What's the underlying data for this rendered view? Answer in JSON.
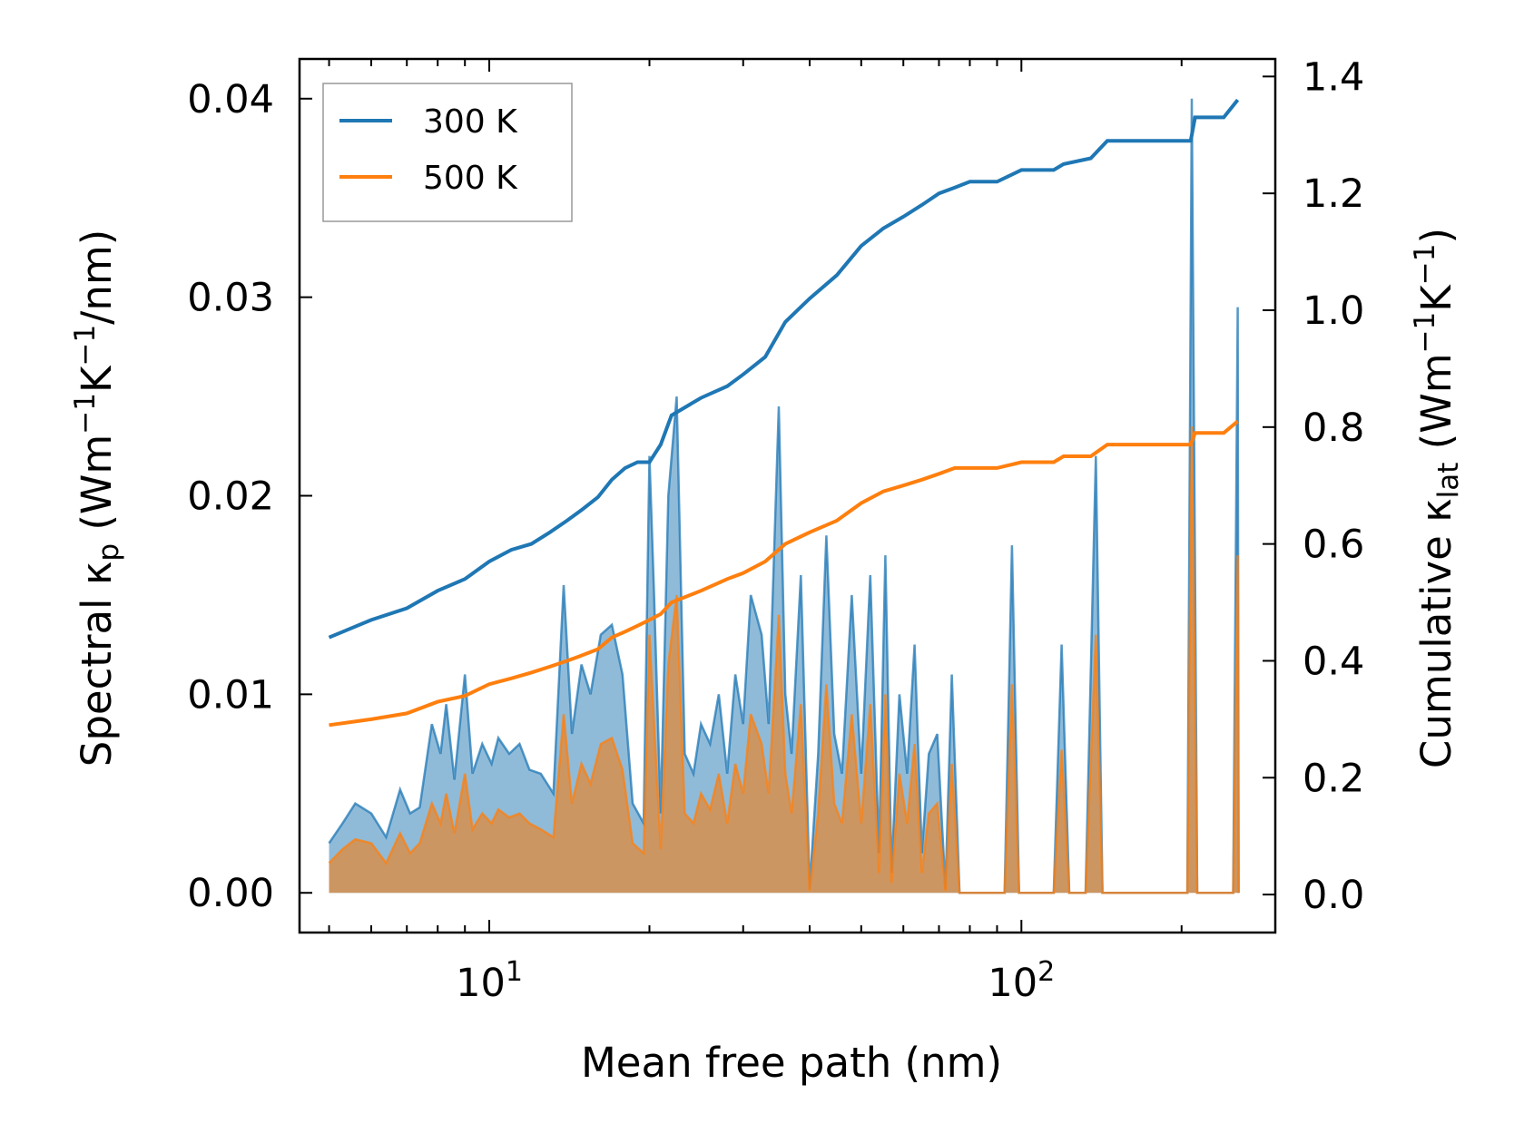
{
  "chart_data": {
    "type": "line",
    "xscale": "log",
    "xlabel": "Mean free path (nm)",
    "ylabel_left": {
      "main": "Spectral κ",
      "sub": "p",
      "unit_open": " (Wm",
      "exp1": "−1",
      "mid": "K",
      "exp2": "−1",
      "unit_close": "/nm)"
    },
    "ylabel_right": {
      "main": "Cumulative κ",
      "sub": "lat",
      "unit_open": " (Wm",
      "exp1": "−1",
      "mid": "K",
      "exp2": "−1",
      "unit_close": ")"
    },
    "xlim": [
      4.4,
      300
    ],
    "ylim_left": [
      -0.002,
      0.042
    ],
    "ylim_right": [
      -0.065,
      1.43
    ],
    "x_ticks": [
      {
        "value": 10,
        "base": "10",
        "exp": "1"
      },
      {
        "value": 100,
        "base": "10",
        "exp": "2"
      }
    ],
    "y_ticks_left": [
      {
        "value": 0.0,
        "label": "0.00"
      },
      {
        "value": 0.01,
        "label": "0.01"
      },
      {
        "value": 0.02,
        "label": "0.02"
      },
      {
        "value": 0.03,
        "label": "0.03"
      },
      {
        "value": 0.04,
        "label": "0.04"
      }
    ],
    "y_ticks_right": [
      {
        "value": 0.0,
        "label": "0.0"
      },
      {
        "value": 0.2,
        "label": "0.2"
      },
      {
        "value": 0.4,
        "label": "0.4"
      },
      {
        "value": 0.6,
        "label": "0.6"
      },
      {
        "value": 0.8,
        "label": "0.8"
      },
      {
        "value": 1.0,
        "label": "1.0"
      },
      {
        "value": 1.2,
        "label": "1.2"
      },
      {
        "value": 1.4,
        "label": "1.4"
      }
    ],
    "series": [
      {
        "name": "300 K",
        "color": "#1f77b4",
        "fill_color": "#1f77b4",
        "cumulative": [
          [
            5.0,
            0.44
          ],
          [
            6.0,
            0.47
          ],
          [
            7.0,
            0.49
          ],
          [
            8.0,
            0.52
          ],
          [
            9.0,
            0.54
          ],
          [
            10.0,
            0.57
          ],
          [
            11.0,
            0.59
          ],
          [
            12.0,
            0.6
          ],
          [
            13.0,
            0.62
          ],
          [
            14.0,
            0.64
          ],
          [
            15.0,
            0.66
          ],
          [
            16.0,
            0.68
          ],
          [
            17.0,
            0.71
          ],
          [
            18.0,
            0.73
          ],
          [
            19.0,
            0.74
          ],
          [
            20.0,
            0.74
          ],
          [
            21.0,
            0.77
          ],
          [
            22.0,
            0.82
          ],
          [
            25.0,
            0.85
          ],
          [
            28.0,
            0.87
          ],
          [
            30.0,
            0.89
          ],
          [
            33.0,
            0.92
          ],
          [
            36.0,
            0.98
          ],
          [
            40.0,
            1.02
          ],
          [
            45.0,
            1.06
          ],
          [
            50.0,
            1.11
          ],
          [
            55.0,
            1.14
          ],
          [
            60.0,
            1.16
          ],
          [
            65.0,
            1.18
          ],
          [
            70.0,
            1.2
          ],
          [
            75.0,
            1.21
          ],
          [
            80.0,
            1.22
          ],
          [
            90.0,
            1.22
          ],
          [
            100.0,
            1.24
          ],
          [
            115.0,
            1.24
          ],
          [
            120.0,
            1.25
          ],
          [
            135.0,
            1.26
          ],
          [
            145.0,
            1.29
          ],
          [
            200.0,
            1.29
          ],
          [
            208.0,
            1.29
          ],
          [
            212.0,
            1.33
          ],
          [
            240.0,
            1.33
          ],
          [
            255.0,
            1.36
          ]
        ],
        "spectral": [
          [
            5.0,
            0.0025
          ],
          [
            5.3,
            0.0035
          ],
          [
            5.6,
            0.0045
          ],
          [
            6.0,
            0.004
          ],
          [
            6.4,
            0.0028
          ],
          [
            6.8,
            0.0052
          ],
          [
            7.1,
            0.004
          ],
          [
            7.4,
            0.0043
          ],
          [
            7.8,
            0.0085
          ],
          [
            8.1,
            0.007
          ],
          [
            8.3,
            0.0095
          ],
          [
            8.6,
            0.0057
          ],
          [
            9.0,
            0.011
          ],
          [
            9.3,
            0.006
          ],
          [
            9.7,
            0.0075
          ],
          [
            10.1,
            0.0065
          ],
          [
            10.4,
            0.0078
          ],
          [
            10.9,
            0.007
          ],
          [
            11.4,
            0.0075
          ],
          [
            11.9,
            0.0062
          ],
          [
            12.5,
            0.006
          ],
          [
            13.2,
            0.005
          ],
          [
            13.8,
            0.0155
          ],
          [
            14.3,
            0.008
          ],
          [
            14.9,
            0.0115
          ],
          [
            15.5,
            0.01
          ],
          [
            16.2,
            0.013
          ],
          [
            17.0,
            0.0135
          ],
          [
            17.8,
            0.011
          ],
          [
            18.6,
            0.0045
          ],
          [
            19.5,
            0.0035
          ],
          [
            20.0,
            0.022
          ],
          [
            20.4,
            0.015
          ],
          [
            21.0,
            0.004
          ],
          [
            21.7,
            0.02
          ],
          [
            22.5,
            0.025
          ],
          [
            23.3,
            0.007
          ],
          [
            24.2,
            0.006
          ],
          [
            25.0,
            0.0085
          ],
          [
            26.0,
            0.0075
          ],
          [
            27.0,
            0.01
          ],
          [
            28.0,
            0.006
          ],
          [
            29.0,
            0.011
          ],
          [
            30.0,
            0.0085
          ],
          [
            31.0,
            0.015
          ],
          [
            32.5,
            0.013
          ],
          [
            33.5,
            0.0085
          ],
          [
            35.0,
            0.0245
          ],
          [
            36.0,
            0.01
          ],
          [
            37.0,
            0.007
          ],
          [
            38.5,
            0.016
          ],
          [
            40.0,
            0.0002
          ],
          [
            41.5,
            0.007
          ],
          [
            43.0,
            0.018
          ],
          [
            44.5,
            0.008
          ],
          [
            46.0,
            0.006
          ],
          [
            48.0,
            0.015
          ],
          [
            50.0,
            0.006
          ],
          [
            52.0,
            0.016
          ],
          [
            54.0,
            0.002
          ],
          [
            55.5,
            0.017
          ],
          [
            57.0,
            0.001
          ],
          [
            59.0,
            0.01
          ],
          [
            61.0,
            0.006
          ],
          [
            63.0,
            0.0125
          ],
          [
            65.0,
            0.002
          ],
          [
            67.0,
            0.007
          ],
          [
            69.5,
            0.008
          ],
          [
            72.0,
            0.0002
          ],
          [
            74.0,
            0.011
          ],
          [
            76.5,
            0.0
          ],
          [
            93.0,
            0.0
          ],
          [
            96.0,
            0.0175
          ],
          [
            99.0,
            0.0
          ],
          [
            115.0,
            0.0
          ],
          [
            119.0,
            0.0125
          ],
          [
            123.0,
            0.0
          ],
          [
            132.0,
            0.0
          ],
          [
            138.0,
            0.022
          ],
          [
            142.0,
            0.0
          ],
          [
            205.0,
            0.0
          ],
          [
            209.0,
            0.04
          ],
          [
            214.0,
            0.0
          ],
          [
            250.0,
            0.0
          ],
          [
            255.0,
            0.0295
          ],
          [
            256.0,
            0.0
          ]
        ]
      },
      {
        "name": "500 K",
        "color": "#ff7f0e",
        "fill_color": "#e08a3a",
        "cumulative": [
          [
            5.0,
            0.29
          ],
          [
            6.0,
            0.3
          ],
          [
            7.0,
            0.31
          ],
          [
            8.0,
            0.33
          ],
          [
            9.0,
            0.34
          ],
          [
            10.0,
            0.36
          ],
          [
            11.0,
            0.37
          ],
          [
            12.0,
            0.38
          ],
          [
            13.0,
            0.39
          ],
          [
            14.0,
            0.4
          ],
          [
            15.0,
            0.41
          ],
          [
            16.0,
            0.42
          ],
          [
            17.0,
            0.44
          ],
          [
            18.0,
            0.45
          ],
          [
            19.0,
            0.46
          ],
          [
            20.0,
            0.47
          ],
          [
            21.0,
            0.48
          ],
          [
            22.0,
            0.5
          ],
          [
            25.0,
            0.52
          ],
          [
            28.0,
            0.54
          ],
          [
            30.0,
            0.55
          ],
          [
            33.0,
            0.57
          ],
          [
            36.0,
            0.6
          ],
          [
            40.0,
            0.62
          ],
          [
            45.0,
            0.64
          ],
          [
            50.0,
            0.67
          ],
          [
            55.0,
            0.69
          ],
          [
            60.0,
            0.7
          ],
          [
            65.0,
            0.71
          ],
          [
            70.0,
            0.72
          ],
          [
            75.0,
            0.73
          ],
          [
            80.0,
            0.73
          ],
          [
            90.0,
            0.73
          ],
          [
            100.0,
            0.74
          ],
          [
            115.0,
            0.74
          ],
          [
            120.0,
            0.75
          ],
          [
            135.0,
            0.75
          ],
          [
            145.0,
            0.77
          ],
          [
            200.0,
            0.77
          ],
          [
            208.0,
            0.77
          ],
          [
            212.0,
            0.79
          ],
          [
            240.0,
            0.79
          ],
          [
            255.0,
            0.81
          ]
        ],
        "spectral": [
          [
            5.0,
            0.0015
          ],
          [
            5.3,
            0.0022
          ],
          [
            5.6,
            0.0027
          ],
          [
            6.0,
            0.0025
          ],
          [
            6.4,
            0.0015
          ],
          [
            6.8,
            0.003
          ],
          [
            7.1,
            0.002
          ],
          [
            7.4,
            0.0025
          ],
          [
            7.8,
            0.0045
          ],
          [
            8.1,
            0.0035
          ],
          [
            8.3,
            0.005
          ],
          [
            8.6,
            0.003
          ],
          [
            9.0,
            0.006
          ],
          [
            9.3,
            0.0032
          ],
          [
            9.7,
            0.004
          ],
          [
            10.1,
            0.0035
          ],
          [
            10.4,
            0.0042
          ],
          [
            10.9,
            0.0038
          ],
          [
            11.4,
            0.004
          ],
          [
            11.9,
            0.0035
          ],
          [
            12.5,
            0.0032
          ],
          [
            13.2,
            0.0028
          ],
          [
            13.8,
            0.009
          ],
          [
            14.3,
            0.0045
          ],
          [
            14.9,
            0.0065
          ],
          [
            15.5,
            0.0055
          ],
          [
            16.2,
            0.0075
          ],
          [
            17.0,
            0.0078
          ],
          [
            17.8,
            0.0062
          ],
          [
            18.6,
            0.0025
          ],
          [
            19.5,
            0.002
          ],
          [
            20.0,
            0.013
          ],
          [
            20.4,
            0.0085
          ],
          [
            21.0,
            0.0022
          ],
          [
            21.7,
            0.0115
          ],
          [
            22.5,
            0.015
          ],
          [
            23.3,
            0.004
          ],
          [
            24.2,
            0.0035
          ],
          [
            25.0,
            0.005
          ],
          [
            26.0,
            0.0042
          ],
          [
            27.0,
            0.006
          ],
          [
            28.0,
            0.0035
          ],
          [
            29.0,
            0.0065
          ],
          [
            30.0,
            0.005
          ],
          [
            31.0,
            0.009
          ],
          [
            32.5,
            0.0075
          ],
          [
            33.5,
            0.005
          ],
          [
            35.0,
            0.014
          ],
          [
            36.0,
            0.006
          ],
          [
            37.0,
            0.004
          ],
          [
            38.5,
            0.0095
          ],
          [
            40.0,
            0.0001
          ],
          [
            41.5,
            0.004
          ],
          [
            43.0,
            0.0105
          ],
          [
            44.5,
            0.0045
          ],
          [
            46.0,
            0.0035
          ],
          [
            48.0,
            0.009
          ],
          [
            50.0,
            0.0035
          ],
          [
            52.0,
            0.0095
          ],
          [
            54.0,
            0.001
          ],
          [
            55.5,
            0.01
          ],
          [
            57.0,
            0.0005
          ],
          [
            59.0,
            0.006
          ],
          [
            61.0,
            0.0035
          ],
          [
            63.0,
            0.0075
          ],
          [
            65.0,
            0.001
          ],
          [
            67.0,
            0.004
          ],
          [
            69.5,
            0.0045
          ],
          [
            72.0,
            0.0001
          ],
          [
            74.0,
            0.0065
          ],
          [
            76.5,
            0.0
          ],
          [
            93.0,
            0.0
          ],
          [
            96.0,
            0.0105
          ],
          [
            99.0,
            0.0
          ],
          [
            115.0,
            0.0
          ],
          [
            119.0,
            0.0072
          ],
          [
            123.0,
            0.0
          ],
          [
            132.0,
            0.0
          ],
          [
            138.0,
            0.013
          ],
          [
            142.0,
            0.0
          ],
          [
            205.0,
            0.0
          ],
          [
            209.0,
            0.0235
          ],
          [
            214.0,
            0.0
          ],
          [
            250.0,
            0.0
          ],
          [
            255.0,
            0.017
          ],
          [
            256.0,
            0.0
          ]
        ]
      }
    ],
    "legend": {
      "location": "upper-left"
    }
  }
}
